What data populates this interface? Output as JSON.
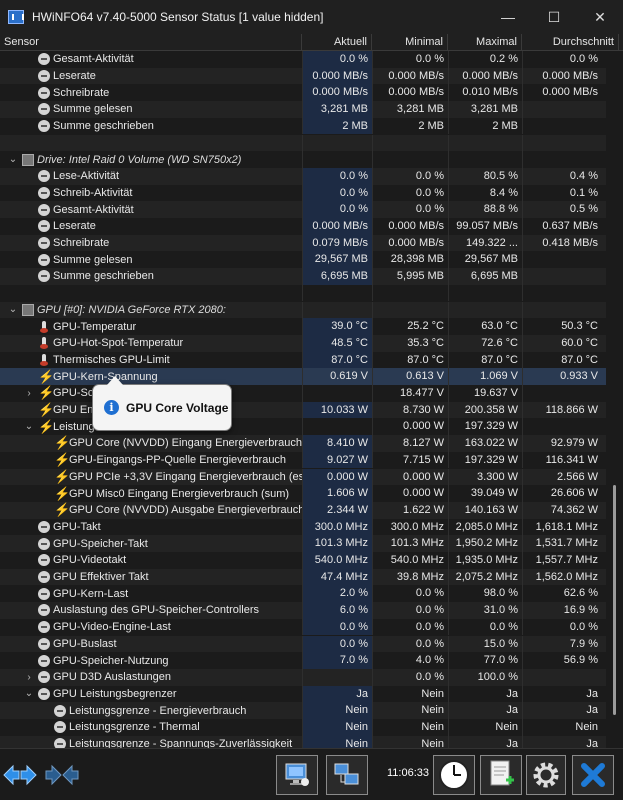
{
  "window": {
    "title": "HWiNFO64 v7.40-5000 Sensor Status [1 value hidden]",
    "minimize": "—",
    "maximize": "☐",
    "close": "✕"
  },
  "columns": [
    "Sensor",
    "Aktuell",
    "Minimal",
    "Maximal",
    "Durchschnitt"
  ],
  "rows": [
    {
      "icon": "circle",
      "indent": 1,
      "label": "Gesamt-Aktivität",
      "cur": "0.0 %",
      "min": "0.0 %",
      "max": "0.2 %",
      "avg": "0.0 %"
    },
    {
      "icon": "circle",
      "indent": 1,
      "label": "Leserate",
      "cur": "0.000 MB/s",
      "min": "0.000 MB/s",
      "max": "0.000 MB/s",
      "avg": "0.000 MB/s"
    },
    {
      "icon": "circle",
      "indent": 1,
      "label": "Schreibrate",
      "cur": "0.000 MB/s",
      "min": "0.000 MB/s",
      "max": "0.010 MB/s",
      "avg": "0.000 MB/s"
    },
    {
      "icon": "circle",
      "indent": 1,
      "label": "Summe gelesen",
      "cur": "3,281 MB",
      "min": "3,281 MB",
      "max": "3,281 MB",
      "avg": ""
    },
    {
      "icon": "circle",
      "indent": 1,
      "label": "Summe geschrieben",
      "cur": "2 MB",
      "min": "2 MB",
      "max": "2 MB",
      "avg": ""
    },
    {
      "icon": "none",
      "indent": 0,
      "label": "",
      "cur": "",
      "min": "",
      "max": "",
      "avg": ""
    },
    {
      "icon": "chip",
      "indent": 0,
      "expand": "⌄",
      "label": "Drive: Intel Raid 0 Volume (WD SN750x2)",
      "italic": true,
      "cur": "",
      "min": "",
      "max": "",
      "avg": ""
    },
    {
      "icon": "circle",
      "indent": 1,
      "label": "Lese-Aktivität",
      "cur": "0.0 %",
      "min": "0.0 %",
      "max": "80.5 %",
      "avg": "0.4 %"
    },
    {
      "icon": "circle",
      "indent": 1,
      "label": "Schreib-Aktivität",
      "cur": "0.0 %",
      "min": "0.0 %",
      "max": "8.4 %",
      "avg": "0.1 %"
    },
    {
      "icon": "circle",
      "indent": 1,
      "label": "Gesamt-Aktivität",
      "cur": "0.0 %",
      "min": "0.0 %",
      "max": "88.8 %",
      "avg": "0.5 %"
    },
    {
      "icon": "circle",
      "indent": 1,
      "label": "Leserate",
      "cur": "0.000 MB/s",
      "min": "0.000 MB/s",
      "max": "99.057 MB/s",
      "avg": "0.637 MB/s"
    },
    {
      "icon": "circle",
      "indent": 1,
      "label": "Schreibrate",
      "cur": "0.079 MB/s",
      "min": "0.000 MB/s",
      "max": "149.322 ...",
      "avg": "0.418 MB/s"
    },
    {
      "icon": "circle",
      "indent": 1,
      "label": "Summe gelesen",
      "cur": "29,567 MB",
      "min": "28,398 MB",
      "max": "29,567 MB",
      "avg": ""
    },
    {
      "icon": "circle",
      "indent": 1,
      "label": "Summe geschrieben",
      "cur": "6,695 MB",
      "min": "5,995 MB",
      "max": "6,695 MB",
      "avg": ""
    },
    {
      "icon": "none",
      "indent": 0,
      "label": "",
      "cur": "",
      "min": "",
      "max": "",
      "avg": ""
    },
    {
      "icon": "chip",
      "indent": 0,
      "expand": "⌄",
      "label": "GPU [#0]: NVIDIA GeForce RTX 2080:",
      "italic": true,
      "cur": "",
      "min": "",
      "max": "",
      "avg": ""
    },
    {
      "icon": "therm",
      "indent": 1,
      "label": "GPU-Temperatur",
      "cur": "39.0 °C",
      "min": "25.2 °C",
      "max": "63.0 °C",
      "avg": "50.3 °C"
    },
    {
      "icon": "therm",
      "indent": 1,
      "label": "GPU-Hot-Spot-Temperatur",
      "cur": "48.5 °C",
      "min": "35.3 °C",
      "max": "72.6 °C",
      "avg": "60.0 °C"
    },
    {
      "icon": "therm",
      "indent": 1,
      "label": "Thermisches GPU-Limit",
      "cur": "87.0 °C",
      "min": "87.0 °C",
      "max": "87.0 °C",
      "avg": "87.0 °C"
    },
    {
      "icon": "bolt",
      "indent": 1,
      "label": "GPU-Kern-Spannung",
      "cur": "0.619 V",
      "min": "0.613 V",
      "max": "1.069 V",
      "avg": "0.933 V",
      "hl": true
    },
    {
      "icon": "bolt",
      "indent": 1,
      "expand": "›",
      "label": "GPU-Sc",
      "cur": "",
      "min": "18.477 V",
      "max": "19.637 V",
      "avg": ""
    },
    {
      "icon": "bolt",
      "indent": 1,
      "label": "GPU Energi",
      "cur": "10.033 W",
      "min": "8.730 W",
      "max": "200.358 W",
      "avg": "118.866 W"
    },
    {
      "icon": "bolt",
      "indent": 1,
      "expand": "⌄",
      "label": "Leistung",
      "cur": "",
      "min": "0.000 W",
      "max": "197.329 W",
      "avg": ""
    },
    {
      "icon": "bolt",
      "indent": 2,
      "label": "GPU Core (NVVDD) Eingang Energieverbrauch",
      "cur": "8.410 W",
      "min": "8.127 W",
      "max": "163.022 W",
      "avg": "92.979 W"
    },
    {
      "icon": "bolt",
      "indent": 2,
      "label": "GPU-Eingangs-PP-Quelle Energieverbrauch",
      "cur": "9.027 W",
      "min": "7.715 W",
      "max": "197.329 W",
      "avg": "116.341 W"
    },
    {
      "icon": "bolt",
      "indent": 2,
      "label": "GPU PCIe +3,3V Eingang Energieverbrauch (est)",
      "cur": "0.000 W",
      "min": "0.000 W",
      "max": "3.300 W",
      "avg": "2.566 W"
    },
    {
      "icon": "bolt",
      "indent": 2,
      "label": "GPU Misc0 Eingang Energieverbrauch (sum)",
      "cur": "1.606 W",
      "min": "0.000 W",
      "max": "39.049 W",
      "avg": "26.606 W"
    },
    {
      "icon": "bolt",
      "indent": 2,
      "label": "GPU Core (NVVDD) Ausgabe Energieverbrauch",
      "cur": "2.344 W",
      "min": "1.622 W",
      "max": "140.163 W",
      "avg": "74.362 W"
    },
    {
      "icon": "circle",
      "indent": 1,
      "label": "GPU-Takt",
      "cur": "300.0 MHz",
      "min": "300.0 MHz",
      "max": "2,085.0 MHz",
      "avg": "1,618.1 MHz"
    },
    {
      "icon": "circle",
      "indent": 1,
      "label": "GPU-Speicher-Takt",
      "cur": "101.3 MHz",
      "min": "101.3 MHz",
      "max": "1,950.2 MHz",
      "avg": "1,531.7 MHz"
    },
    {
      "icon": "circle",
      "indent": 1,
      "label": "GPU-Videotakt",
      "cur": "540.0 MHz",
      "min": "540.0 MHz",
      "max": "1,935.0 MHz",
      "avg": "1,557.7 MHz"
    },
    {
      "icon": "circle",
      "indent": 1,
      "label": "GPU Effektiver Takt",
      "cur": "47.4 MHz",
      "min": "39.8 MHz",
      "max": "2,075.2 MHz",
      "avg": "1,562.0 MHz"
    },
    {
      "icon": "circle",
      "indent": 1,
      "label": "GPU-Kern-Last",
      "cur": "2.0 %",
      "min": "0.0 %",
      "max": "98.0 %",
      "avg": "62.6 %"
    },
    {
      "icon": "circle",
      "indent": 1,
      "label": "Auslastung des GPU-Speicher-Controllers",
      "cur": "6.0 %",
      "min": "0.0 %",
      "max": "31.0 %",
      "avg": "16.9 %"
    },
    {
      "icon": "circle",
      "indent": 1,
      "label": "GPU-Video-Engine-Last",
      "cur": "0.0 %",
      "min": "0.0 %",
      "max": "0.0 %",
      "avg": "0.0 %"
    },
    {
      "icon": "circle",
      "indent": 1,
      "label": "GPU-Buslast",
      "cur": "0.0 %",
      "min": "0.0 %",
      "max": "15.0 %",
      "avg": "7.9 %"
    },
    {
      "icon": "circle",
      "indent": 1,
      "label": "GPU-Speicher-Nutzung",
      "cur": "7.0 %",
      "min": "4.0 %",
      "max": "77.0 %",
      "avg": "56.9 %"
    },
    {
      "icon": "circle",
      "indent": 1,
      "expand": "›",
      "label": "GPU D3D Auslastungen",
      "cur": "",
      "min": "0.0 %",
      "max": "100.0 %",
      "avg": ""
    },
    {
      "icon": "circle",
      "indent": 1,
      "expand": "⌄",
      "label": "GPU Leistungsbegrenzer",
      "cur": "Ja",
      "min": "Nein",
      "max": "Ja",
      "avg": "Ja"
    },
    {
      "icon": "circle",
      "indent": 2,
      "label": "Leistungsgrenze - Energieverbrauch",
      "cur": "Nein",
      "min": "Nein",
      "max": "Ja",
      "avg": "Ja"
    },
    {
      "icon": "circle",
      "indent": 2,
      "label": "Leistungsgrenze - Thermal",
      "cur": "Nein",
      "min": "Nein",
      "max": "Nein",
      "avg": "Nein"
    },
    {
      "icon": "circle",
      "indent": 2,
      "label": "Leistungsgrenze - Spannungs-Zuverlässigkeit",
      "cur": "Nein",
      "min": "Nein",
      "max": "Ja",
      "avg": "Ja"
    }
  ],
  "tooltip": {
    "text": "GPU Core Voltage",
    "icon": "info-icon"
  },
  "toolbar": {
    "time": "11:06:33",
    "buttons": [
      "nav-arrows-icon",
      "collapse-arrows-icon",
      "monitor-icon",
      "network-icon",
      "clock-icon",
      "report-add-icon",
      "settings-gear-icon",
      "close-x-icon"
    ]
  },
  "colors": {
    "bolt": "#f5c400",
    "highlight": "#2a3a52",
    "value_bg": "#1d2b44",
    "info_blue": "#1f6fd1",
    "close_blue": "#1e7ad6"
  }
}
